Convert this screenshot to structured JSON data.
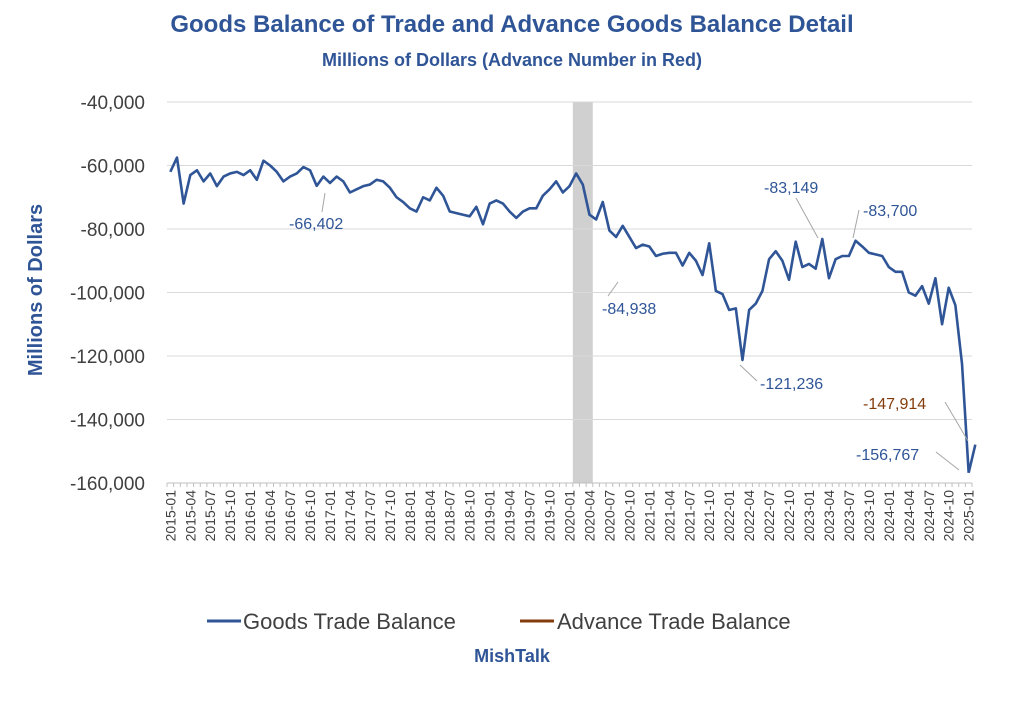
{
  "chart_data": {
    "type": "line",
    "title": "Goods Balance of Trade and Advance Goods Balance Detail",
    "subtitle": "Millions of Dollars  (Advance Number in Red)",
    "ylabel": "Millions of Dollars",
    "xlabel": "",
    "ylim": [
      -160000,
      -40000
    ],
    "yticks": [
      -40000,
      -60000,
      -80000,
      -100000,
      -120000,
      -140000,
      -160000
    ],
    "ytick_labels": [
      "-40,000",
      "-60,000",
      "-80,000",
      "-100,000",
      "-120,000",
      "-140,000",
      "-160,000"
    ],
    "x_start": "2015-01",
    "xtick_labels": [
      "2015-01",
      "2015-04",
      "2015-07",
      "2015-10",
      "2016-01",
      "2016-04",
      "2016-07",
      "2016-10",
      "2017-01",
      "2017-04",
      "2017-07",
      "2017-10",
      "2018-01",
      "2018-04",
      "2018-07",
      "2018-10",
      "2019-01",
      "2019-04",
      "2019-07",
      "2019-10",
      "2020-01",
      "2020-04",
      "2020-07",
      "2020-10",
      "2021-01",
      "2021-04",
      "2021-07",
      "2021-10",
      "2022-01",
      "2022-04",
      "2022-07",
      "2022-10",
      "2023-01",
      "2023-04",
      "2023-07",
      "2023-10",
      "2024-01",
      "2024-04",
      "2024-07",
      "2024-10",
      "2025-01"
    ],
    "shaded_region": [
      "2020-02",
      "2020-04"
    ],
    "grid": true,
    "legend_position": "bottom",
    "series": [
      {
        "name": "Goods Trade Balance",
        "color": "#2f5597",
        "values": [
          -62000,
          -57500,
          -72000,
          -63000,
          -61500,
          -65000,
          -62500,
          -66500,
          -63500,
          -62500,
          -62000,
          -63000,
          -61500,
          -64500,
          -58500,
          -60000,
          -62000,
          -65000,
          -63500,
          -62500,
          -60500,
          -61500,
          -66402,
          -63500,
          -65500,
          -63500,
          -65000,
          -68500,
          -67500,
          -66500,
          -66000,
          -64500,
          -65000,
          -67000,
          -70000,
          -71500,
          -73500,
          -74500,
          -70000,
          -71000,
          -67000,
          -69500,
          -74500,
          -75000,
          -75500,
          -76000,
          -73000,
          -78500,
          -72000,
          -71000,
          -72000,
          -74500,
          -76500,
          -74500,
          -73500,
          -73500,
          -69500,
          -67500,
          -65000,
          -68500,
          -66500,
          -62500,
          -66000,
          -75500,
          -77000,
          -71500,
          -80500,
          -82500,
          -79000,
          -82500,
          -86000,
          -84938,
          -85500,
          -88500,
          -87800,
          -87500,
          -87500,
          -91500,
          -87500,
          -90000,
          -94500,
          -84500,
          -99500,
          -100500,
          -105500,
          -105000,
          -121236,
          -105500,
          -103500,
          -99500,
          -89500,
          -87000,
          -90000,
          -96000,
          -84000,
          -92000,
          -91000,
          -92500,
          -83149,
          -95500,
          -89500,
          -88500,
          -88500,
          -83700,
          -85500,
          -87500,
          -88000,
          -88500,
          -92000,
          -93500,
          -93500,
          -100000,
          -101000,
          -98000,
          -103500,
          -95500,
          -110000,
          -98500,
          -104000,
          -122500,
          -156767
        ]
      },
      {
        "name": "Advance Trade Balance",
        "color": "#843c0c",
        "values": [
          {
            "x": "2025-01",
            "y": -156767
          },
          {
            "x": "2025-02",
            "y": -147914
          }
        ]
      }
    ],
    "annotations": [
      {
        "text": "-66,402",
        "x": "2016-11",
        "y": -66402,
        "color": "#2f5597"
      },
      {
        "text": "-84,938",
        "x": "2020-12",
        "y": -84938,
        "color": "#2f5597"
      },
      {
        "text": "-121,236",
        "x": "2022-03",
        "y": -121236,
        "color": "#2f5597"
      },
      {
        "text": "-83,149",
        "x": "2023-03",
        "y": -83149,
        "color": "#2f5597"
      },
      {
        "text": "-83,700",
        "x": "2023-08",
        "y": -83700,
        "color": "#2f5597"
      },
      {
        "text": "-147,914",
        "x": "2025-02",
        "y": -147914,
        "color": "#843c0c"
      },
      {
        "text": "-156,767",
        "x": "2025-01",
        "y": -156767,
        "color": "#2f5597"
      }
    ],
    "source_label": "MishTalk"
  }
}
